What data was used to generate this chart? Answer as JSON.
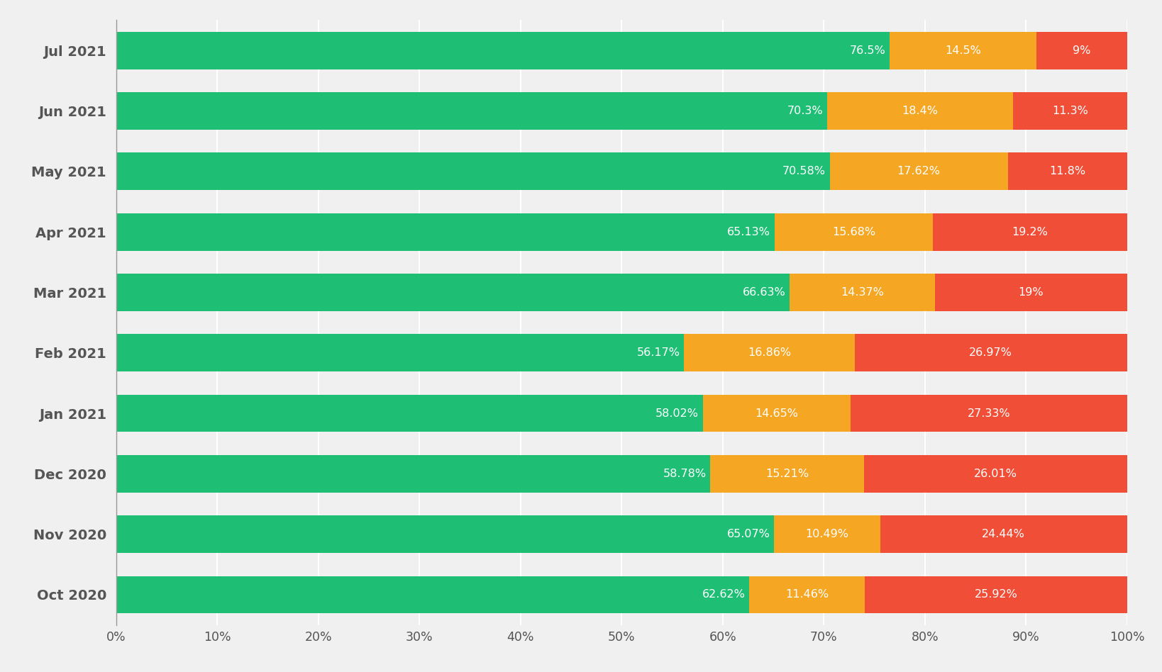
{
  "months": [
    "Oct 2020",
    "Nov 2020",
    "Dec 2020",
    "Jan 2021",
    "Feb 2021",
    "Mar 2021",
    "Apr 2021",
    "May 2021",
    "Jun 2021",
    "Jul 2021"
  ],
  "good": [
    62.62,
    65.07,
    58.78,
    58.02,
    56.17,
    66.63,
    65.13,
    70.58,
    70.3,
    76.5
  ],
  "needs_improvement": [
    11.46,
    10.49,
    15.21,
    14.65,
    16.86,
    14.37,
    15.68,
    17.62,
    18.4,
    14.5
  ],
  "poor": [
    25.92,
    24.44,
    26.01,
    27.33,
    26.97,
    19.0,
    19.2,
    11.8,
    11.3,
    9.0
  ],
  "good_labels": [
    "62.62%",
    "65.07%",
    "58.78%",
    "58.02%",
    "56.17%",
    "66.63%",
    "65.13%",
    "70.58%",
    "70.3%",
    "76.5%"
  ],
  "needs_improvement_labels": [
    "11.46%",
    "10.49%",
    "15.21%",
    "14.65%",
    "16.86%",
    "14.37%",
    "15.68%",
    "17.62%",
    "18.4%",
    "14.5%"
  ],
  "poor_labels": [
    "25.92%",
    "24.44%",
    "26.01%",
    "27.33%",
    "26.97%",
    "19%",
    "19.2%",
    "11.8%",
    "11.3%",
    "9%"
  ],
  "color_good": "#1EBF75",
  "color_needs_improvement": "#F5A623",
  "color_poor": "#F04E37",
  "background_color": "#F0F0F0",
  "bar_height": 0.62,
  "xlabel_ticks": [
    "0%",
    "10%",
    "20%",
    "30%",
    "40%",
    "50%",
    "60%",
    "70%",
    "80%",
    "90%",
    "100%"
  ],
  "xlabel_vals": [
    0,
    10,
    20,
    30,
    40,
    50,
    60,
    70,
    80,
    90,
    100
  ],
  "label_fontsize": 11.5,
  "tick_fontsize": 12.5,
  "ytick_fontsize": 14
}
